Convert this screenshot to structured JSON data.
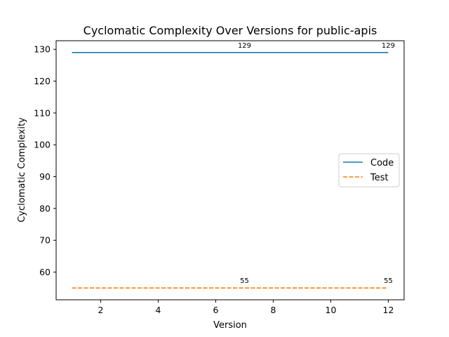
{
  "chart_data": {
    "type": "line",
    "title": "Cyclomatic Complexity Over Versions for public-apis",
    "xlabel": "Version",
    "ylabel": "Cyclomatic Complexity",
    "xlim": [
      0.45,
      12.55
    ],
    "ylim": [
      51.3,
      132.7
    ],
    "x_ticks": [
      2,
      4,
      6,
      8,
      10,
      12
    ],
    "y_ticks": [
      60,
      70,
      80,
      90,
      100,
      110,
      120,
      130
    ],
    "grid": false,
    "legend_position": "center-right",
    "series": [
      {
        "name": "Code",
        "color": "#1f77b4",
        "style": "solid",
        "x": [
          1,
          2,
          3,
          4,
          5,
          6,
          7,
          8,
          9,
          10,
          11,
          12
        ],
        "values": [
          129,
          129,
          129,
          129,
          129,
          129,
          129,
          129,
          129,
          129,
          129,
          129
        ],
        "annotations": [
          {
            "x": 7,
            "y": 129,
            "text": "129"
          },
          {
            "x": 12,
            "y": 129,
            "text": "129"
          }
        ]
      },
      {
        "name": "Test",
        "color": "#ff7f0e",
        "style": "dashed",
        "x": [
          1,
          2,
          3,
          4,
          5,
          6,
          7,
          8,
          9,
          10,
          11,
          12
        ],
        "values": [
          55,
          55,
          55,
          55,
          55,
          55,
          55,
          55,
          55,
          55,
          55,
          55
        ],
        "annotations": [
          {
            "x": 7,
            "y": 55,
            "text": "55"
          },
          {
            "x": 12,
            "y": 55,
            "text": "55"
          }
        ]
      }
    ]
  }
}
